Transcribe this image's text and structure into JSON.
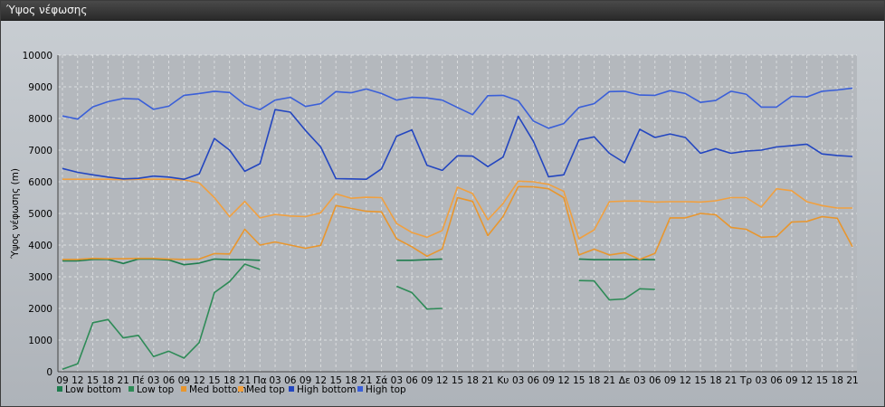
{
  "window": {
    "title": "Ύψος νέφωσης"
  },
  "chart_data": {
    "type": "line",
    "ylabel": "Ύψος νέφωσης (m)",
    "ylim": [
      0,
      10000
    ],
    "yticks": [
      0,
      1000,
      2000,
      3000,
      4000,
      5000,
      6000,
      7000,
      8000,
      9000,
      10000
    ],
    "grid": true,
    "legend_position": "bottom",
    "x": [
      "09",
      "12",
      "15",
      "18",
      "21",
      "Πέ",
      "03",
      "06",
      "09",
      "12",
      "15",
      "18",
      "21",
      "Πα",
      "03",
      "06",
      "09",
      "12",
      "15",
      "18",
      "21",
      "Σά",
      "03",
      "06",
      "09",
      "12",
      "15",
      "18",
      "21",
      "Κυ",
      "03",
      "06",
      "09",
      "12",
      "15",
      "18",
      "21",
      "Δε",
      "03",
      "06",
      "09",
      "12",
      "15",
      "18",
      "21",
      "Τρ",
      "03",
      "06",
      "09",
      "12",
      "15",
      "18",
      "21"
    ],
    "series": [
      {
        "name": "Low bottom",
        "color": "#1e7d4e",
        "values": [
          3500,
          3500,
          3550,
          3550,
          3420,
          3560,
          3560,
          3530,
          3380,
          3430,
          3560,
          3540,
          3540,
          3520,
          null,
          null,
          null,
          null,
          null,
          null,
          null,
          null,
          3520,
          3520,
          3540,
          3560,
          null,
          null,
          null,
          null,
          null,
          null,
          null,
          null,
          3560,
          3540,
          3540,
          3540,
          3550,
          3540,
          null,
          null,
          null,
          null,
          null,
          null,
          null,
          null,
          null,
          null,
          null,
          null,
          null
        ]
      },
      {
        "name": "Low top",
        "color": "#2e8b57",
        "values": [
          80,
          250,
          1550,
          1650,
          1070,
          1150,
          480,
          650,
          430,
          920,
          2500,
          2850,
          3400,
          3230,
          null,
          null,
          null,
          null,
          null,
          null,
          null,
          null,
          2700,
          2500,
          1980,
          2000,
          null,
          null,
          null,
          null,
          null,
          null,
          null,
          null,
          2880,
          2870,
          2270,
          2300,
          2620,
          2600,
          null,
          null,
          null,
          null,
          null,
          null,
          null,
          null,
          null,
          null,
          null,
          null,
          null
        ]
      },
      {
        "name": "Med bottom",
        "color": "#e8962e",
        "values": [
          3550,
          3550,
          3580,
          3570,
          3570,
          3580,
          3580,
          3560,
          3550,
          3560,
          3730,
          3720,
          4500,
          4000,
          4100,
          4000,
          3900,
          3990,
          5250,
          5160,
          5070,
          5050,
          4200,
          3950,
          3650,
          3880,
          5500,
          5380,
          4300,
          4900,
          5850,
          5840,
          5780,
          5500,
          3690,
          3870,
          3690,
          3760,
          3550,
          3740,
          4860,
          4860,
          5000,
          4960,
          4560,
          4500,
          4250,
          4270,
          4730,
          4750,
          4900,
          4850,
          3950
        ]
      },
      {
        "name": "Med top",
        "color": "#f0a040",
        "values": [
          6080,
          6080,
          6080,
          6080,
          6070,
          6080,
          6080,
          6080,
          6060,
          5970,
          5500,
          4900,
          5380,
          4860,
          4970,
          4920,
          4900,
          5020,
          5620,
          5480,
          5510,
          5500,
          4680,
          4400,
          4250,
          4460,
          5830,
          5630,
          4800,
          5310,
          6020,
          6000,
          5920,
          5700,
          4200,
          4480,
          5370,
          5390,
          5390,
          5360,
          5370,
          5370,
          5360,
          5400,
          5500,
          5500,
          5200,
          5780,
          5720,
          5370,
          5250,
          5170,
          5170
        ]
      },
      {
        "name": "High bottom",
        "color": "#2346c0",
        "values": [
          6420,
          6300,
          6220,
          6150,
          6090,
          6110,
          6180,
          6150,
          6080,
          6250,
          7370,
          7000,
          6330,
          6570,
          8280,
          8200,
          7620,
          7100,
          6100,
          6090,
          6080,
          6410,
          7440,
          7640,
          6520,
          6360,
          6820,
          6810,
          6480,
          6780,
          8070,
          7280,
          6160,
          6220,
          7320,
          7420,
          6900,
          6600,
          7660,
          7400,
          7510,
          7400,
          6900,
          7050,
          6900,
          6970,
          7000,
          7100,
          7140,
          7190,
          6880,
          6830,
          6800
        ]
      },
      {
        "name": "High top",
        "color": "#3a5fd8",
        "values": [
          8080,
          7980,
          8370,
          8530,
          8630,
          8610,
          8290,
          8390,
          8730,
          8790,
          8860,
          8820,
          8440,
          8280,
          8580,
          8670,
          8380,
          8470,
          8850,
          8810,
          8930,
          8790,
          8580,
          8670,
          8650,
          8580,
          8350,
          8120,
          8720,
          8730,
          8560,
          7920,
          7690,
          7840,
          8350,
          8470,
          8850,
          8860,
          8740,
          8730,
          8880,
          8790,
          8510,
          8570,
          8860,
          8770,
          8360,
          8360,
          8700,
          8680,
          8860,
          8900,
          8960
        ]
      }
    ]
  }
}
